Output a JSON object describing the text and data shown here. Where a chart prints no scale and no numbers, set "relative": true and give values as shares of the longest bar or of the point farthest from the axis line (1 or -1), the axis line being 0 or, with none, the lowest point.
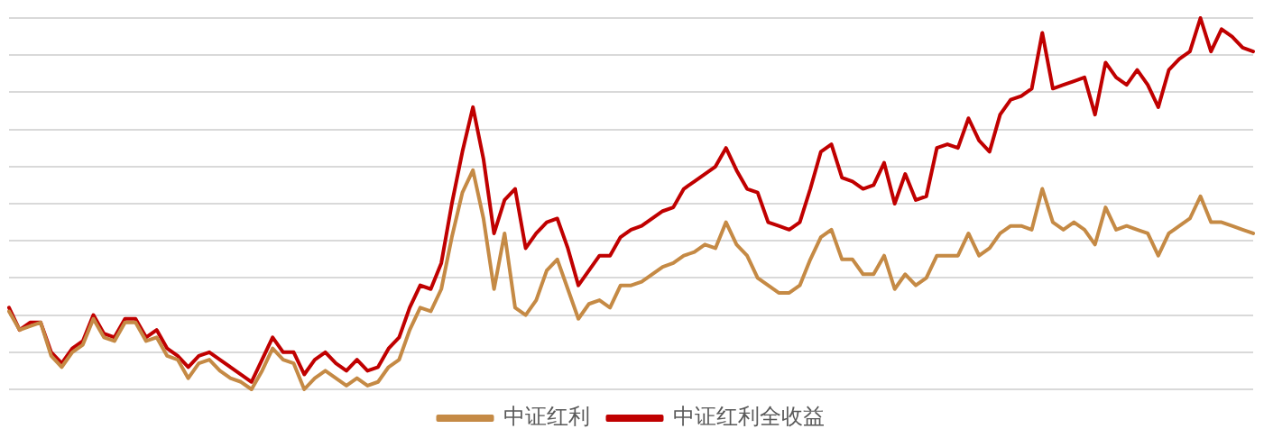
{
  "chart_data": {
    "type": "line",
    "relative": true,
    "grid": "y",
    "legend": "bottom",
    "marker": "none",
    "line_style": "solid",
    "categories": [
      null,
      null,
      null,
      null,
      null,
      null,
      null,
      null,
      null,
      null,
      null,
      null,
      null,
      null,
      null,
      null,
      null,
      null,
      null,
      null,
      null,
      null,
      null,
      null,
      null,
      null,
      null,
      null,
      null,
      null,
      null,
      null,
      null,
      null,
      null,
      null,
      null,
      null,
      null,
      null,
      null,
      null,
      null,
      null,
      null,
      null,
      null,
      null,
      null,
      null,
      null,
      null,
      null,
      null,
      null,
      null,
      null,
      null,
      null,
      null,
      null,
      null,
      null,
      null,
      null,
      null,
      null,
      null,
      null,
      null,
      null,
      null,
      null,
      null,
      null,
      null,
      null,
      null,
      null,
      null,
      null,
      null,
      null,
      null,
      null,
      null,
      null,
      null,
      null,
      null,
      null,
      null,
      null,
      null,
      null,
      null,
      null,
      null,
      null,
      null,
      null,
      null,
      null,
      null,
      null,
      null,
      null,
      null,
      null,
      null,
      null,
      null,
      null,
      null,
      null,
      null,
      null,
      null,
      null
    ],
    "series": [
      {
        "name": "中证红利",
        "color": "#c58a45",
        "values": [
          0.21,
          0.16,
          0.17,
          0.18,
          0.09,
          0.06,
          0.1,
          0.12,
          0.19,
          0.14,
          0.13,
          0.18,
          0.18,
          0.13,
          0.14,
          0.09,
          0.08,
          0.03,
          0.07,
          0.08,
          0.05,
          0.03,
          0.02,
          0,
          0.05,
          0.11,
          0.08,
          0.07,
          0,
          0.03,
          0.05,
          0.03,
          0.01,
          0.03,
          0.01,
          0.02,
          0.06,
          0.08,
          0.16,
          0.22,
          0.21,
          0.27,
          0.41,
          0.53,
          0.59,
          0.46,
          0.27,
          0.42,
          0.22,
          0.2,
          0.24,
          0.32,
          0.35,
          0.27,
          0.19,
          0.23,
          0.24,
          0.22,
          0.28,
          0.28,
          0.29,
          0.31,
          0.33,
          0.34,
          0.36,
          0.37,
          0.39,
          0.38,
          0.45,
          0.39,
          0.36,
          0.3,
          0.28,
          0.26,
          0.26,
          0.28,
          0.35,
          0.41,
          0.43,
          0.35,
          0.35,
          0.31,
          0.31,
          0.36,
          0.27,
          0.31,
          0.28,
          0.3,
          0.36,
          0.36,
          0.36,
          0.42,
          0.36,
          0.38,
          0.42,
          0.44,
          0.44,
          0.43,
          0.54,
          0.45,
          0.43,
          0.45,
          0.43,
          0.39,
          0.49,
          0.43,
          0.44,
          0.43,
          0.42,
          0.36,
          0.42,
          0.44,
          0.46,
          0.52,
          0.45,
          0.45,
          0.44,
          0.43,
          0.42
        ]
      },
      {
        "name": "中证红利全收益",
        "color": "#c00000",
        "values": [
          0.22,
          0.16,
          0.18,
          0.18,
          0.1,
          0.07,
          0.11,
          0.13,
          0.2,
          0.15,
          0.14,
          0.19,
          0.19,
          0.14,
          0.16,
          0.11,
          0.09,
          0.06,
          0.09,
          0.1,
          0.08,
          0.06,
          0.04,
          0.02,
          0.08,
          0.14,
          0.1,
          0.1,
          0.04,
          0.08,
          0.1,
          0.07,
          0.05,
          0.08,
          0.05,
          0.06,
          0.11,
          0.14,
          0.22,
          0.28,
          0.27,
          0.34,
          0.5,
          0.64,
          0.76,
          0.62,
          0.42,
          0.51,
          0.54,
          0.38,
          0.42,
          0.45,
          0.46,
          0.38,
          0.28,
          0.32,
          0.36,
          0.36,
          0.41,
          0.43,
          0.44,
          0.46,
          0.48,
          0.49,
          0.54,
          0.56,
          0.58,
          0.6,
          0.65,
          0.59,
          0.54,
          0.53,
          0.45,
          0.44,
          0.43,
          0.45,
          0.54,
          0.64,
          0.66,
          0.57,
          0.56,
          0.54,
          0.55,
          0.61,
          0.5,
          0.58,
          0.51,
          0.52,
          0.65,
          0.66,
          0.65,
          0.73,
          0.67,
          0.64,
          0.74,
          0.78,
          0.79,
          0.81,
          0.96,
          0.81,
          0.82,
          0.83,
          0.84,
          0.74,
          0.88,
          0.84,
          0.82,
          0.86,
          0.82,
          0.76,
          0.86,
          0.89,
          0.91,
          1,
          0.91,
          0.97,
          0.95,
          0.92,
          0.91
        ]
      }
    ]
  }
}
